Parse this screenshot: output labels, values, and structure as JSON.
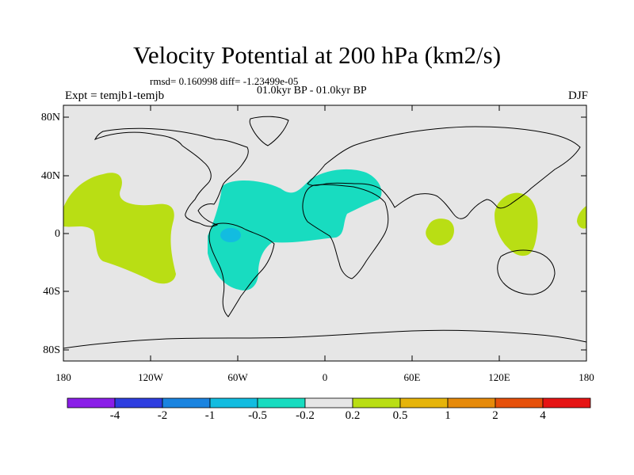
{
  "title": "Velocity Potential at 200 hPa (km2/s)",
  "stats": "rmsd= 0.160998 diff= -1.23499e-05",
  "period": "01.0kyr BP - 01.0kyr BP",
  "experiment": "Expt = temjb1-temjb",
  "season": "DJF",
  "lat_ticks": [
    "80N",
    "40N",
    "0",
    "40S",
    "80S"
  ],
  "lon_ticks": [
    "180",
    "120W",
    "60W",
    "0",
    "60E",
    "120E",
    "180"
  ],
  "colorbar": {
    "labels": [
      "-4",
      "-2",
      "-1",
      "-0.5",
      "-0.2",
      "0.2",
      "0.5",
      "1",
      "2",
      "4"
    ],
    "colors": [
      "#8a1ee8",
      "#2e3ee0",
      "#1a84e0",
      "#12bce0",
      "#18dcc0",
      "#e6e6e6",
      "#b9de14",
      "#e6b40a",
      "#e68a0a",
      "#e6500a",
      "#e61414"
    ]
  },
  "colors": {
    "ocean": "#e6e6e6",
    "negative": "#18dcc0",
    "strong_negative": "#12bce0",
    "positive": "#b9de14"
  }
}
